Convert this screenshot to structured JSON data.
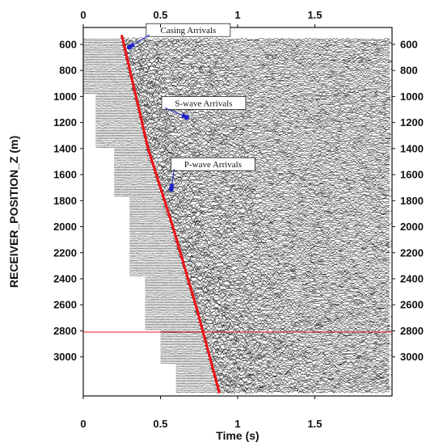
{
  "chart_data": {
    "type": "seismic-section",
    "xlabel": "Time (s)",
    "ylabel": "RECEIVER_POSITION_Z (m)",
    "x_ticks": [
      {
        "value": 0,
        "label": "0"
      },
      {
        "value": 0.5,
        "label": "0.5"
      },
      {
        "value": 1,
        "label": "1"
      },
      {
        "value": 1.5,
        "label": "1.5"
      }
    ],
    "y_ticks": [
      600,
      800,
      1000,
      1200,
      1400,
      1600,
      1800,
      2000,
      2200,
      2400,
      2600,
      2800,
      3000
    ],
    "xlim": [
      0,
      2.0
    ],
    "ylim": [
      3300,
      470
    ],
    "first_break_pick": {
      "color": "#e8161a",
      "points": [
        {
          "time": 0.25,
          "depth": 535
        },
        {
          "time": 0.42,
          "depth": 1400
        },
        {
          "time": 0.58,
          "depth": 2000
        },
        {
          "time": 0.74,
          "depth": 2650
        },
        {
          "time": 0.88,
          "depth": 3270
        }
      ]
    },
    "reference_line": {
      "depth": 2810,
      "color": "#e8161a"
    },
    "annotations": [
      {
        "label": "Casing Arrivals",
        "text_time": 0.68,
        "text_depth": 490,
        "arrow_time": 0.3,
        "arrow_depth": 620
      },
      {
        "label": "S-wave Arrivals",
        "text_time": 0.78,
        "text_depth": 1050,
        "arrow_time": 0.67,
        "arrow_depth": 1160
      },
      {
        "label": "P-wave Arrivals",
        "text_time": 0.84,
        "text_depth": 1520,
        "arrow_time": 0.57,
        "arrow_depth": 1710
      }
    ],
    "traces": {
      "depth_start": 560,
      "depth_end": 3270,
      "count": 210,
      "steps": [
        {
          "from_depth": 560,
          "start_time": 0.0
        },
        {
          "from_depth": 980,
          "start_time": 0.08
        },
        {
          "from_depth": 1400,
          "start_time": 0.2
        },
        {
          "from_depth": 1770,
          "start_time": 0.3
        },
        {
          "from_depth": 2380,
          "start_time": 0.4
        },
        {
          "from_depth": 2800,
          "start_time": 0.5
        },
        {
          "from_depth": 3060,
          "start_time": 0.6
        }
      ]
    },
    "grid": false
  }
}
